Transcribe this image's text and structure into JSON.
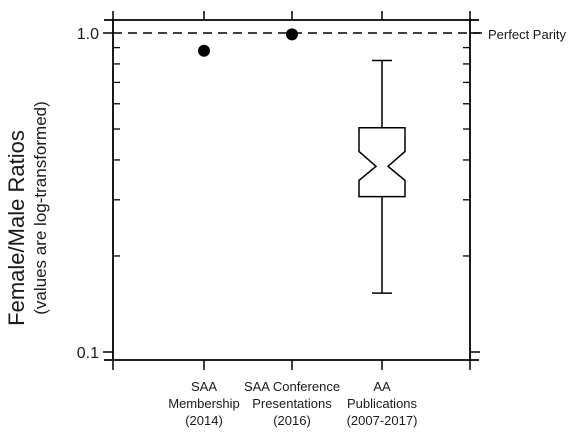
{
  "chart_data": {
    "type": "box",
    "ylabel": "Female/Male Ratios",
    "ylabel_sub": "(values are log-transformed)",
    "yscale": "log",
    "ylim": [
      0.1,
      1.06
    ],
    "yticks": [
      {
        "value": 0.1,
        "label": "0.1"
      },
      {
        "value": 1.0,
        "label": "1.0"
      }
    ],
    "y_minor_ticks": [
      0.2,
      0.3,
      0.4,
      0.5,
      0.6,
      0.7,
      0.8,
      0.9
    ],
    "reference_line": {
      "value": 1.0,
      "label": "Perfect Parity",
      "style": "dashed"
    },
    "categories": [
      {
        "lines": [
          "SAA",
          "Membership",
          "(2014)"
        ]
      },
      {
        "lines": [
          "SAA Conference",
          "Presentations",
          "(2016)"
        ]
      },
      {
        "lines": [
          "AA",
          "Publications",
          "(2007-2017)"
        ]
      }
    ],
    "points": [
      {
        "category": 0,
        "value": 0.88
      },
      {
        "category": 1,
        "value": 0.99
      }
    ],
    "box": {
      "category": 2,
      "notched": true,
      "whisker_low": 0.153,
      "q1": 0.307,
      "median": 0.382,
      "q3": 0.505,
      "whisker_high": 0.82,
      "notch_low": 0.345,
      "notch_high": 0.425
    },
    "colors": {
      "ink": "#000000",
      "text": "#1a1a1a",
      "box_fill": "#ffffff"
    },
    "grid": false,
    "legend": "none"
  }
}
